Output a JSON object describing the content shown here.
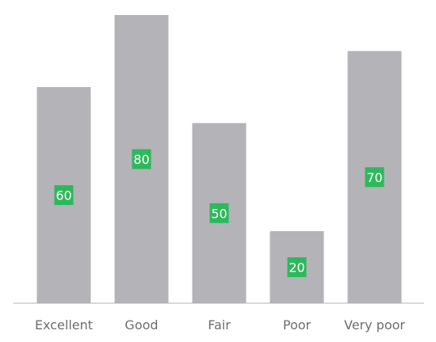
{
  "chart_data": {
    "type": "bar",
    "categories": [
      "Excellent",
      "Good",
      "Fair",
      "Poor",
      "Very poor"
    ],
    "values": [
      60,
      80,
      50,
      20,
      70
    ],
    "title": "",
    "xlabel": "",
    "ylabel": "",
    "ylim": [
      0,
      80
    ],
    "grid": false,
    "legend": "none",
    "bar_color": "#b3b3b8",
    "label_box_color": "#2eb85c",
    "label_text_color": "#ffffff",
    "axis_color": "#b3b3b3",
    "tick_label_color": "#6d6d6d"
  }
}
